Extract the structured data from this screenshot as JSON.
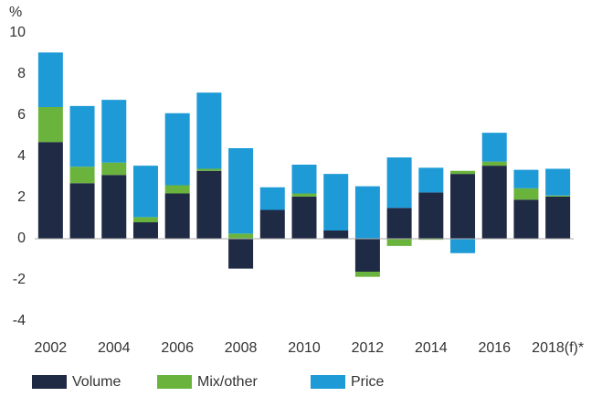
{
  "chart_data": {
    "type": "stacked_bar",
    "title": "%",
    "categories": [
      "2002",
      null,
      "2004",
      null,
      "2006",
      null,
      "2008",
      null,
      "2010",
      null,
      "2012",
      null,
      "2014",
      null,
      "2016",
      null,
      "2018(f)*"
    ],
    "series": [
      {
        "name": "Volume",
        "color": "#1f2a44",
        "values": [
          4.7,
          2.7,
          3.1,
          0.8,
          2.2,
          3.3,
          -1.45,
          1.4,
          2.05,
          0.4,
          -1.6,
          1.5,
          2.25,
          3.15,
          3.55,
          1.9,
          2.05
        ]
      },
      {
        "name": "Mix/other",
        "color": "#6ab43e",
        "values": [
          1.7,
          0.8,
          0.6,
          0.25,
          0.4,
          0.1,
          0.25,
          0,
          0.15,
          0,
          -0.25,
          -0.35,
          -0.05,
          0.15,
          0.2,
          0.55,
          0.05
        ]
      },
      {
        "name": "Price",
        "color": "#1e9bd7",
        "values": [
          2.65,
          2.95,
          3.05,
          2.5,
          3.5,
          3.7,
          4.15,
          1.1,
          1.4,
          2.75,
          2.55,
          2.45,
          1.2,
          -0.7,
          1.4,
          0.9,
          1.3
        ]
      }
    ],
    "ylim": [
      -4,
      10
    ],
    "yticks": [
      10,
      8,
      6,
      4,
      2,
      0,
      -2,
      -4
    ],
    "grid": false,
    "legend": "bottom"
  }
}
